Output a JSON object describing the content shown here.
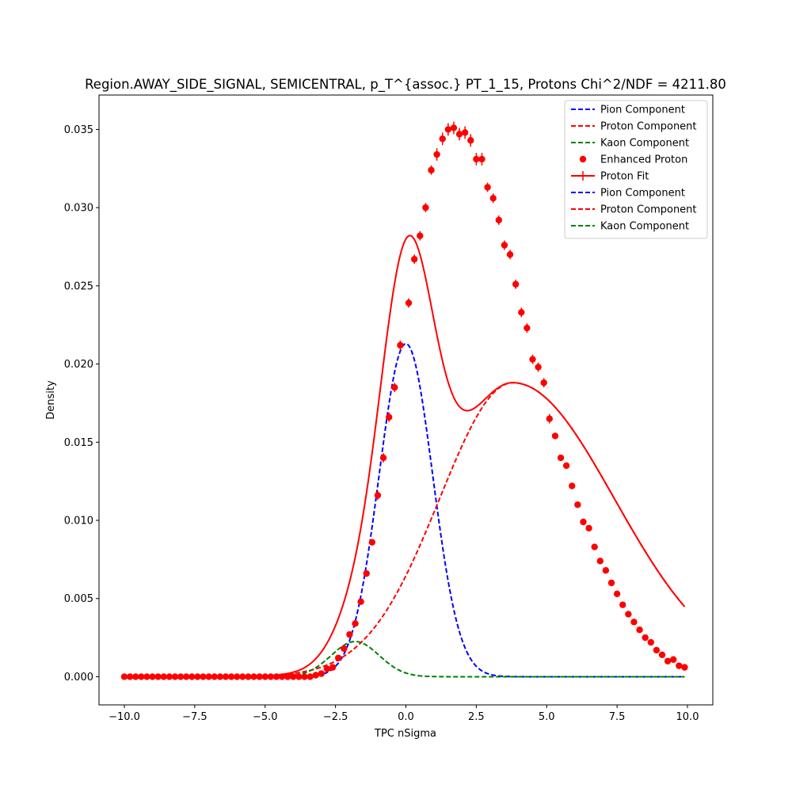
{
  "chart_data": {
    "type": "line",
    "title": "Region.AWAY_SIDE_SIGNAL, SEMICENTRAL, p_T^{assoc.} PT_1_15, Protons Chi^2/NDF = 4211.80",
    "xlabel": "TPC nSigma",
    "ylabel": "Density",
    "xlim": [
      -10.9,
      10.9
    ],
    "ylim": [
      -0.0018,
      0.0372
    ],
    "xticks": [
      -10.0,
      -7.5,
      -5.0,
      -2.5,
      0.0,
      2.5,
      5.0,
      7.5,
      10.0
    ],
    "xtick_labels": [
      "−10.0",
      "−7.5",
      "−5.0",
      "−2.5",
      "0.0",
      "2.5",
      "5.0",
      "7.5",
      "10.0"
    ],
    "yticks": [
      0.0,
      0.005,
      0.01,
      0.015,
      0.02,
      0.025,
      0.03,
      0.035
    ],
    "ytick_labels": [
      "0.000",
      "0.005",
      "0.010",
      "0.015",
      "0.020",
      "0.025",
      "0.030",
      "0.035"
    ],
    "grid": false,
    "legend_position": "top-right",
    "legend": [
      {
        "label": "Pion Component",
        "style": "dashed",
        "color": "#0000ff"
      },
      {
        "label": "Proton Component",
        "style": "dashed",
        "color": "#ff0000"
      },
      {
        "label": "Kaon Component",
        "style": "dashed",
        "color": "#008000"
      },
      {
        "label": "Enhanced Proton",
        "style": "marker",
        "color": "#ff0000"
      },
      {
        "label": "Proton Fit",
        "style": "solid-errorbar",
        "color": "#ff0000"
      },
      {
        "label": "Pion Component",
        "style": "dashed",
        "color": "#0000ff"
      },
      {
        "label": "Proton Component",
        "style": "dashed",
        "color": "#ff0000"
      },
      {
        "label": "Kaon Component",
        "style": "dashed",
        "color": "#008000"
      }
    ],
    "components": {
      "pion": {
        "amplitude": 0.0213,
        "mean": 0.0,
        "sigma": 0.95,
        "color": "#0000ff"
      },
      "proton": {
        "amplitude": 0.0188,
        "mean": 3.8,
        "sigma_left": 2.6,
        "sigma_right": 3.6,
        "color": "#ff0000"
      },
      "kaon": {
        "amplitude": 0.00225,
        "mean": -1.8,
        "sigma": 0.85,
        "color": "#008000"
      }
    },
    "series": [
      {
        "name": "Enhanced Proton",
        "color": "#ff0000",
        "x": [
          -10.0,
          -9.8,
          -9.6,
          -9.4,
          -9.2,
          -9.0,
          -8.8,
          -8.6,
          -8.4,
          -8.2,
          -8.0,
          -7.8,
          -7.6,
          -7.4,
          -7.2,
          -7.0,
          -6.8,
          -6.6,
          -6.4,
          -6.2,
          -6.0,
          -5.8,
          -5.6,
          -5.4,
          -5.2,
          -5.0,
          -4.8,
          -4.6,
          -4.4,
          -4.2,
          -4.0,
          -3.8,
          -3.6,
          -3.4,
          -3.2,
          -3.0,
          -2.8,
          -2.6,
          -2.4,
          -2.2,
          -2.0,
          -1.8,
          -1.6,
          -1.4,
          -1.2,
          -1.0,
          -0.8,
          -0.6,
          -0.4,
          -0.2,
          0.1,
          0.3,
          0.5,
          0.7,
          0.9,
          1.1,
          1.3,
          1.5,
          1.7,
          1.9,
          2.1,
          2.3,
          2.5,
          2.7,
          2.9,
          3.1,
          3.3,
          3.5,
          3.7,
          3.9,
          4.1,
          4.3,
          4.5,
          4.7,
          4.9,
          5.1,
          5.3,
          5.5,
          5.7,
          5.9,
          6.1,
          6.3,
          6.5,
          6.7,
          6.9,
          7.1,
          7.3,
          7.5,
          7.7,
          7.9,
          8.1,
          8.3,
          8.5,
          8.7,
          8.9,
          9.1,
          9.3,
          9.5,
          9.7,
          9.9
        ],
        "y": [
          0.0,
          0.0,
          0.0,
          0.0,
          0.0,
          0.0,
          0.0,
          0.0,
          0.0,
          0.0,
          0.0,
          0.0,
          0.0,
          0.0,
          0.0,
          0.0,
          0.0,
          0.0,
          0.0,
          0.0,
          0.0,
          0.0,
          0.0,
          0.0,
          0.0,
          0.0,
          0.0,
          0.0,
          0.0,
          0.0,
          0.0,
          0.0,
          0.0,
          0.0,
          0.0001,
          0.0002,
          0.0005,
          0.0006,
          0.0012,
          0.0018,
          0.0027,
          0.0034,
          0.0048,
          0.0066,
          0.0086,
          0.0116,
          0.014,
          0.0166,
          0.0185,
          0.0212,
          0.0239,
          0.0267,
          0.0282,
          0.03,
          0.0324,
          0.0334,
          0.0344,
          0.035,
          0.0351,
          0.0347,
          0.0348,
          0.0343,
          0.0331,
          0.0331,
          0.0313,
          0.0306,
          0.0292,
          0.0276,
          0.027,
          0.0251,
          0.0233,
          0.0223,
          0.0203,
          0.0198,
          0.0188,
          0.0165,
          0.0154,
          0.014,
          0.0135,
          0.0122,
          0.011,
          0.0099,
          0.0095,
          0.0083,
          0.0074,
          0.0068,
          0.006,
          0.0053,
          0.0046,
          0.004,
          0.0035,
          0.003,
          0.0025,
          0.0022,
          0.0017,
          0.0014,
          0.001,
          0.0011,
          0.0007,
          0.0006
        ],
        "yerr": [
          0.0,
          0.0,
          0.0,
          0.0,
          0.0,
          0.0,
          0.0,
          0.0,
          0.0,
          0.0,
          0.0,
          0.0,
          0.0,
          0.0,
          0.0,
          0.0,
          0.0,
          0.0,
          0.0,
          0.0,
          0.0,
          0.0,
          0.0,
          0.0,
          0.0,
          0.0,
          0.0,
          0.0,
          0.0,
          0.0,
          0.0,
          0.0,
          0.0,
          0.0,
          0.0001,
          0.0001,
          0.0001,
          0.0001,
          0.0001,
          0.0001,
          0.0002,
          0.0002,
          0.0002,
          0.0002,
          0.0002,
          0.0003,
          0.0003,
          0.0003,
          0.0003,
          0.0003,
          0.0003,
          0.0003,
          0.0003,
          0.0003,
          0.0003,
          0.0004,
          0.0004,
          0.0004,
          0.0004,
          0.0004,
          0.0004,
          0.0004,
          0.0004,
          0.0004,
          0.0003,
          0.0003,
          0.0003,
          0.0003,
          0.0003,
          0.0003,
          0.0003,
          0.0003,
          0.0003,
          0.0003,
          0.0003,
          0.0003,
          0.0002,
          0.0002,
          0.0002,
          0.0002,
          0.0002,
          0.0002,
          0.0002,
          0.0002,
          0.0002,
          0.0002,
          0.0002,
          0.0002,
          0.0002,
          0.0002,
          0.0001,
          0.0001,
          0.0001,
          0.0001,
          0.0001,
          0.0001,
          0.0001,
          0.0001,
          0.0001,
          0.0001
        ]
      }
    ]
  }
}
